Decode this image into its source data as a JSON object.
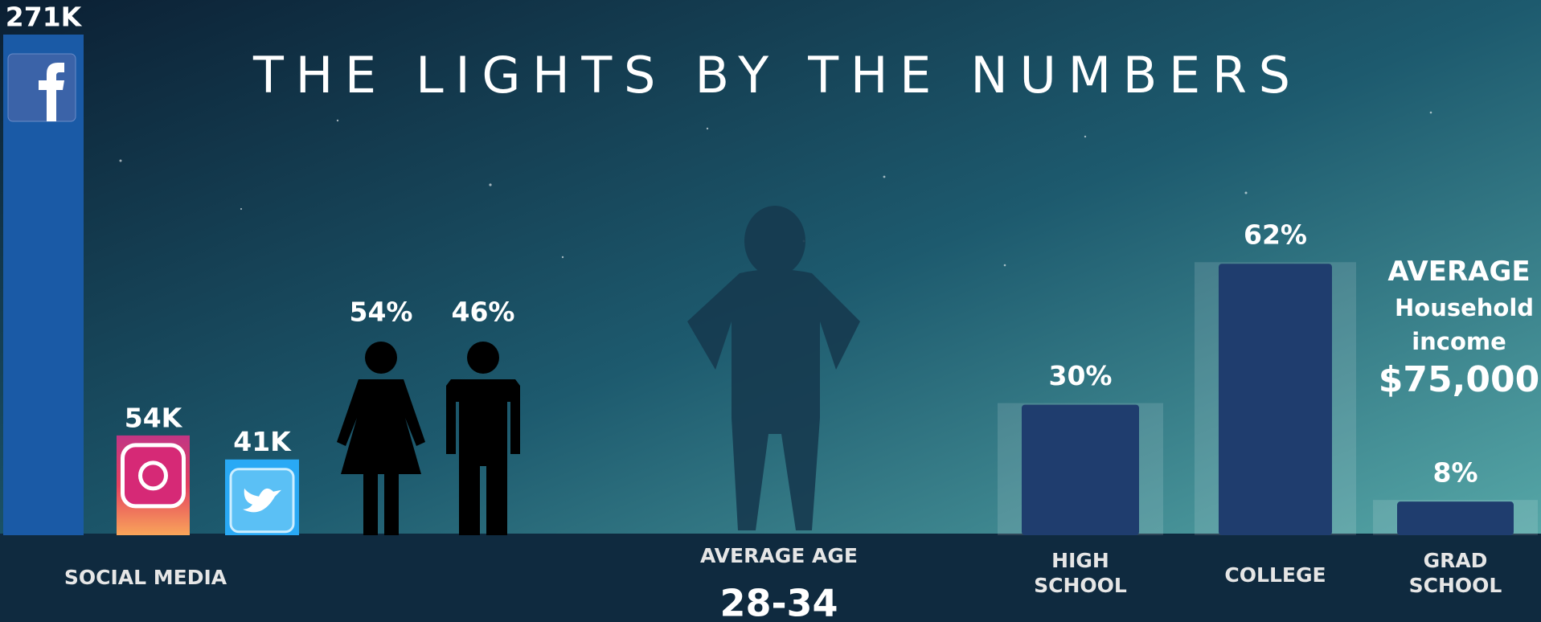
{
  "title": "THE LIGHTS BY THE NUMBERS",
  "chart_data": [
    {
      "type": "bar",
      "xlabel": "SOCIAL MEDIA",
      "values": [
        271000,
        54000,
        41000
      ],
      "value_labels": [
        "271K",
        "54K",
        "41K"
      ],
      "colors": [
        "#1a5aa6",
        "#e4405f",
        "#29a9f5"
      ],
      "ylim": [
        0,
        271000
      ]
    },
    {
      "type": "pictogram",
      "values": [
        54,
        46
      ],
      "value_labels": [
        "54%",
        "46%"
      ],
      "color": "#000000"
    },
    {
      "type": "bar",
      "categories": [
        "HIGH SCHOOL",
        "COLLEGE",
        "GRAD SCHOOL"
      ],
      "values": [
        30,
        62,
        8
      ],
      "value_labels": [
        "30%",
        "62%",
        "8%"
      ],
      "color": "#1f3d6e",
      "ylim": [
        0,
        100
      ]
    }
  ],
  "age": {
    "label": "AVERAGE AGE",
    "value": "28-34"
  },
  "income": {
    "label": "AVERAGE",
    "sublabel": "Household income",
    "value": "$75,000"
  }
}
